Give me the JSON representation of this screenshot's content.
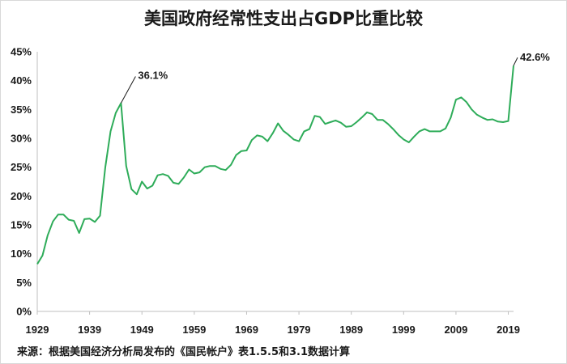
{
  "chart_data": {
    "type": "line",
    "title": "美国政府经常性支出占GDP比重比较",
    "source": "来源：根据美国经济分析局发布的《国民帐户》表1.5.5和3.1数据计算",
    "xlabel": "",
    "ylabel": "",
    "ylim": [
      0,
      45
    ],
    "xlim": [
      1929,
      2020
    ],
    "y_ticks": [
      "0%",
      "5%",
      "10%",
      "15%",
      "20%",
      "25%",
      "30%",
      "35%",
      "40%",
      "45%"
    ],
    "x_ticks": [
      "1929",
      "1939",
      "1949",
      "1959",
      "1969",
      "1979",
      "1989",
      "1999",
      "2009",
      "2019"
    ],
    "grid": false,
    "line_color": "#2eac59",
    "series": [
      {
        "x": [
          1929,
          1930,
          1931,
          1932,
          1933,
          1934,
          1935,
          1936,
          1937,
          1938,
          1939,
          1940,
          1941,
          1942,
          1943,
          1944,
          1945,
          1946,
          1947,
          1948,
          1949,
          1950,
          1951,
          1952,
          1953,
          1954,
          1955,
          1956,
          1957,
          1958,
          1959,
          1960,
          1961,
          1962,
          1963,
          1964,
          1965,
          1966,
          1967,
          1968,
          1969,
          1970,
          1971,
          1972,
          1973,
          1974,
          1975,
          1976,
          1977,
          1978,
          1979,
          1980,
          1981,
          1982,
          1983,
          1984,
          1985,
          1986,
          1987,
          1988,
          1989,
          1990,
          1991,
          1992,
          1993,
          1994,
          1995,
          1996,
          1997,
          1998,
          1999,
          2000,
          2001,
          2002,
          2003,
          2004,
          2005,
          2006,
          2007,
          2008,
          2009,
          2010,
          2011,
          2012,
          2013,
          2014,
          2015,
          2016,
          2017,
          2018,
          2019,
          2020
        ],
        "values": [
          8.2,
          9.7,
          13.2,
          15.6,
          16.8,
          16.8,
          15.9,
          15.7,
          13.6,
          16.0,
          16.1,
          15.5,
          16.6,
          25.0,
          31.2,
          34.4,
          36.1,
          25.2,
          21.2,
          20.3,
          22.5,
          21.3,
          21.8,
          23.6,
          23.8,
          23.5,
          22.3,
          22.1,
          23.2,
          24.6,
          23.9,
          24.1,
          25.0,
          25.2,
          25.2,
          24.7,
          24.5,
          25.4,
          27.1,
          27.8,
          27.9,
          29.7,
          30.5,
          30.3,
          29.5,
          30.9,
          32.6,
          31.3,
          30.6,
          29.8,
          29.5,
          31.2,
          31.6,
          33.9,
          33.7,
          32.5,
          32.8,
          33.1,
          32.7,
          32.0,
          32.1,
          32.8,
          33.6,
          34.5,
          34.2,
          33.2,
          33.2,
          32.5,
          31.6,
          30.6,
          29.8,
          29.3,
          30.3,
          31.2,
          31.6,
          31.2,
          31.2,
          31.2,
          31.7,
          33.6,
          36.7,
          37.1,
          36.3,
          35.0,
          34.1,
          33.6,
          33.2,
          33.3,
          32.9,
          32.8,
          33.0,
          42.6
        ]
      }
    ],
    "annotations": [
      {
        "x": 1945,
        "y": 36.1,
        "label": "36.1%"
      },
      {
        "x": 2020,
        "y": 42.6,
        "label": "42.6%"
      }
    ]
  }
}
